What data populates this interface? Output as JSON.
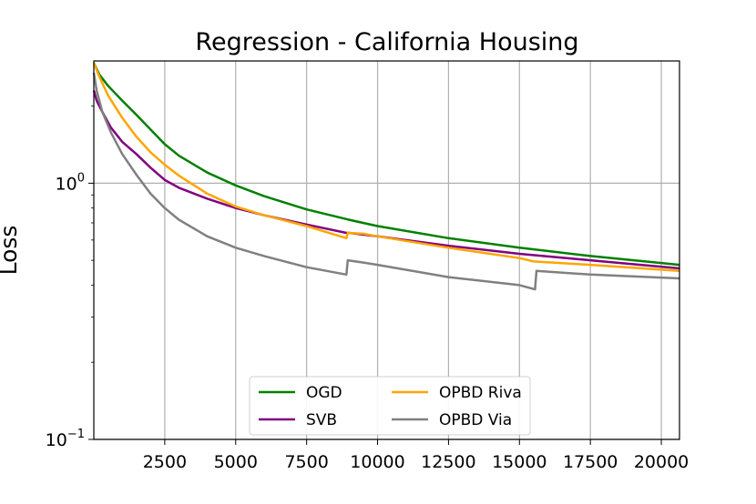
{
  "chart_data": {
    "type": "line",
    "title": "Regression - California Housing",
    "xlabel": "",
    "ylabel": "Loss",
    "yscale": "log",
    "xlim": [
      0,
      20640
    ],
    "ylim": [
      0.1,
      3.0
    ],
    "grid": true,
    "legend_position": "bottom-center",
    "xticks": [
      2500,
      5000,
      7500,
      10000,
      12500,
      15000,
      17500,
      20000
    ],
    "xtick_labels": [
      "2500",
      "5000",
      "7500",
      "10000",
      "12500",
      "15000",
      "17500",
      "20000"
    ],
    "yticks": [
      {
        "value": 0.1,
        "base": "10",
        "exp": "−1"
      },
      {
        "value": 1.0,
        "base": "10",
        "exp": "0"
      }
    ],
    "series": [
      {
        "name": "OGD",
        "color": "#008000",
        "x": [
          0,
          200,
          500,
          1000,
          1500,
          2000,
          2500,
          3000,
          4000,
          5000,
          6000,
          7500,
          9000,
          10000,
          12500,
          15000,
          17500,
          20640
        ],
        "y": [
          2.95,
          2.65,
          2.4,
          2.1,
          1.85,
          1.62,
          1.42,
          1.28,
          1.1,
          0.98,
          0.89,
          0.79,
          0.72,
          0.68,
          0.61,
          0.56,
          0.52,
          0.48
        ]
      },
      {
        "name": "SVB",
        "color": "#800080",
        "x": [
          0,
          100,
          300,
          600,
          1000,
          1500,
          2000,
          2500,
          3000,
          4000,
          5000,
          6000,
          7500,
          8900,
          9000,
          9500,
          10000,
          12500,
          15000,
          17500,
          20640
        ],
        "y": [
          2.3,
          2.1,
          1.9,
          1.65,
          1.45,
          1.3,
          1.15,
          1.03,
          0.96,
          0.87,
          0.8,
          0.75,
          0.69,
          0.64,
          0.64,
          0.63,
          0.62,
          0.57,
          0.53,
          0.5,
          0.465
        ]
      },
      {
        "name": "OPBD Riva",
        "color": "#FFA500",
        "x": [
          0,
          200,
          500,
          1000,
          1500,
          2000,
          2500,
          3000,
          4000,
          5000,
          6000,
          7500,
          8900,
          8950,
          9500,
          10000,
          12500,
          15000,
          15500,
          17500,
          20640
        ],
        "y": [
          2.95,
          2.6,
          2.2,
          1.8,
          1.52,
          1.32,
          1.18,
          1.07,
          0.91,
          0.81,
          0.75,
          0.68,
          0.61,
          0.64,
          0.635,
          0.62,
          0.56,
          0.51,
          0.495,
          0.48,
          0.455
        ]
      },
      {
        "name": "OPBD Via",
        "color": "#808080",
        "x": [
          0,
          100,
          300,
          600,
          1000,
          1500,
          2000,
          2500,
          3000,
          4000,
          5000,
          6000,
          7500,
          8900,
          8950,
          9500,
          10000,
          12500,
          15000,
          15550,
          15600,
          17500,
          20640
        ],
        "y": [
          2.7,
          2.3,
          1.9,
          1.58,
          1.3,
          1.08,
          0.91,
          0.8,
          0.72,
          0.62,
          0.56,
          0.52,
          0.47,
          0.44,
          0.5,
          0.49,
          0.48,
          0.43,
          0.4,
          0.385,
          0.455,
          0.44,
          0.425
        ]
      }
    ]
  }
}
